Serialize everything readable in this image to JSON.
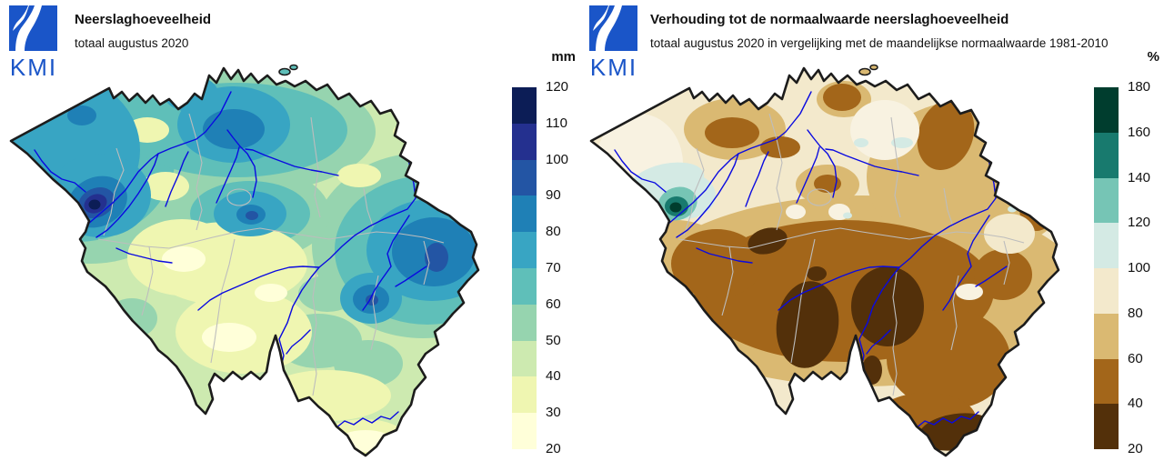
{
  "left_panel": {
    "logo_text": "KMI",
    "title": "Neerslaghoeveelheid",
    "subtitle": "totaal augustus 2020",
    "legend": {
      "unit": "mm",
      "tick_labels": [
        "120",
        "110",
        "100",
        "90",
        "80",
        "70",
        "60",
        "50",
        "40",
        "30",
        "20"
      ],
      "colors": [
        "#0c1d56",
        "#24308f",
        "#2355a4",
        "#1f80b6",
        "#38a5c3",
        "#5fbfb9",
        "#96d4af",
        "#cdeab0",
        "#eff6b1",
        "#ffffd9"
      ]
    }
  },
  "right_panel": {
    "logo_text": "KMI",
    "title": "Verhouding tot de normaalwaarde neerslaghoeveelheid",
    "subtitle": "totaal augustus 2020 in vergelijking met de maandelijkse normaalwaarde 1981-2010",
    "legend": {
      "unit": "%",
      "tick_labels": [
        "180",
        "160",
        "140",
        "120",
        "100",
        "80",
        "60",
        "40",
        "20"
      ],
      "colors": [
        "#003d2e",
        "#187a6e",
        "#76c5b5",
        "#d4eae4",
        "#f3e9cc",
        "#dab972",
        "#a3661a",
        "#53300a"
      ]
    }
  },
  "map": {
    "country": "Belgium",
    "outline_color": "#1c1c1c",
    "province_border_color": "#bdbdbd",
    "river_color": "#0a0ae0",
    "right_pale_patch_color": "#f8f2e1",
    "logo_blue": "#1a55c8"
  }
}
